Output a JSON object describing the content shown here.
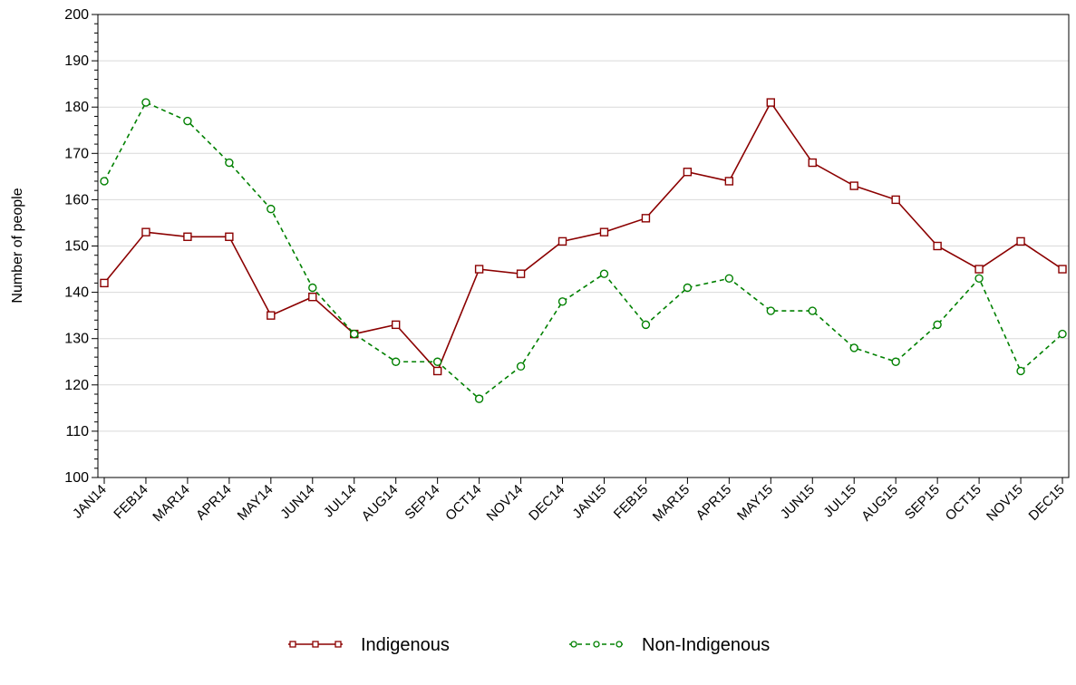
{
  "chart_data": {
    "type": "line",
    "title": "",
    "xlabel": "",
    "ylabel": "Number of people",
    "ylim": [
      100,
      200
    ],
    "yticks": [
      100,
      110,
      120,
      130,
      140,
      150,
      160,
      170,
      180,
      190,
      200
    ],
    "grid": true,
    "legend_position": "bottom",
    "categories": [
      "JAN14",
      "FEB14",
      "MAR14",
      "APR14",
      "MAY14",
      "JUN14",
      "JUL14",
      "AUG14",
      "SEP14",
      "OCT14",
      "NOV14",
      "DEC14",
      "JAN15",
      "FEB15",
      "MAR15",
      "APR15",
      "MAY15",
      "JUN15",
      "JUL15",
      "AUG15",
      "SEP15",
      "OCT15",
      "NOV15",
      "DEC15"
    ],
    "series": [
      {
        "name": "Indigenous",
        "color": "#8b0000",
        "line_style": "solid",
        "marker": "square",
        "values": [
          142,
          153,
          152,
          152,
          135,
          139,
          131,
          133,
          123,
          145,
          144,
          151,
          153,
          156,
          166,
          164,
          181,
          168,
          163,
          160,
          150,
          145,
          151,
          145
        ]
      },
      {
        "name": "Non-Indigenous",
        "color": "#008000",
        "line_style": "dashed",
        "marker": "circle",
        "values": [
          164,
          181,
          177,
          168,
          158,
          141,
          131,
          125,
          125,
          117,
          124,
          138,
          144,
          133,
          141,
          143,
          136,
          136,
          128,
          125,
          133,
          143,
          123,
          131
        ]
      }
    ]
  }
}
